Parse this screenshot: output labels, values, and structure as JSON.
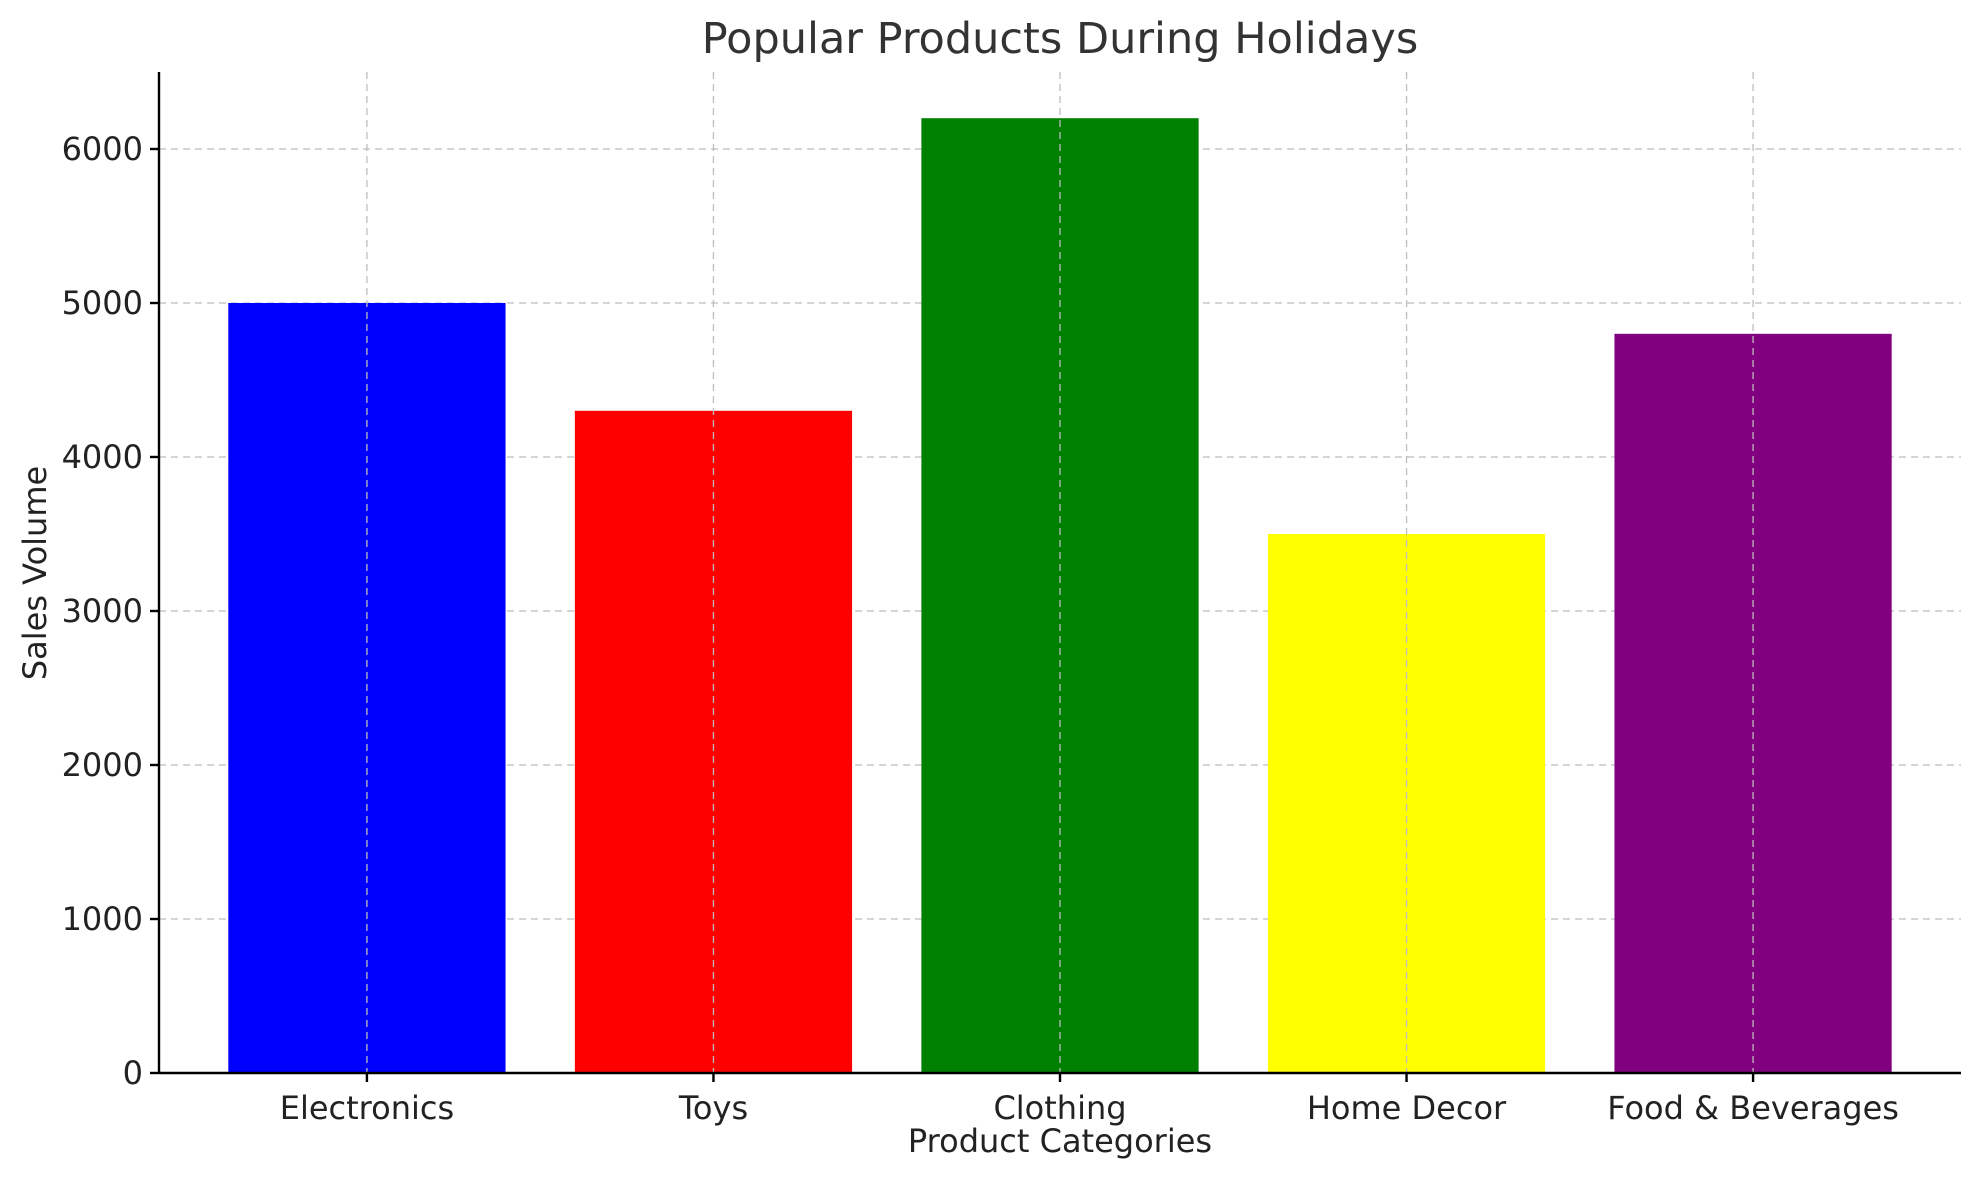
{
  "chart_data": {
    "type": "bar",
    "title": "Popular Products During Holidays",
    "xlabel": "Product Categories",
    "ylabel": "Sales Volume",
    "categories": [
      "Electronics",
      "Toys",
      "Clothing",
      "Home Decor",
      "Food & Beverages"
    ],
    "values": [
      5000,
      4300,
      6200,
      3500,
      4800
    ],
    "colors": [
      "#0000ff",
      "#ff0000",
      "#008000",
      "#ffff00",
      "#800080"
    ],
    "ylim": [
      0,
      6500
    ],
    "yticks": [
      0,
      1000,
      2000,
      3000,
      4000,
      5000,
      6000
    ],
    "ytick_labels": [
      "0",
      "1000",
      "2000",
      "3000",
      "4000",
      "5000",
      "6000"
    ],
    "grid": true,
    "legend": "none"
  }
}
